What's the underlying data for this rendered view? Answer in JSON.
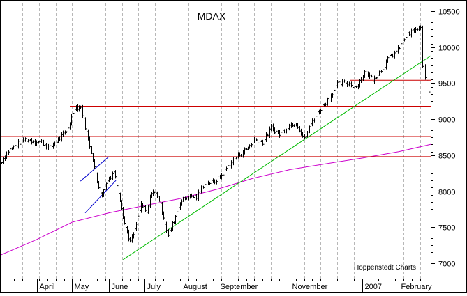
{
  "chart_data": {
    "type": "line",
    "title": "MDAX",
    "source_label": "Hoppenstedt Charts",
    "ylim": [
      6900,
      10550
    ],
    "y_ticks": [
      7000,
      7500,
      8000,
      8500,
      9000,
      9500,
      10000,
      10500
    ],
    "x_range": [
      "2006-03-01",
      "2007-02-28"
    ],
    "month_labels": [
      {
        "label": "April",
        "date": "2006-04-01"
      },
      {
        "label": "May",
        "date": "2006-05-01"
      },
      {
        "label": "June",
        "date": "2006-06-01"
      },
      {
        "label": "July",
        "date": "2006-07-01"
      },
      {
        "label": "August",
        "date": "2006-08-01"
      },
      {
        "label": "September",
        "date": "2006-09-01"
      },
      {
        "label": "November",
        "date": "2006-11-01"
      },
      {
        "label": "2007",
        "date": "2007-01-01"
      },
      {
        "label": "February",
        "date": "2007-02-01"
      }
    ],
    "grid": "vertical dashed",
    "series": [
      {
        "color": "#000000",
        "style": "daily-bars",
        "x": [
          "2006-03-01",
          "2006-03-08",
          "2006-03-15",
          "2006-03-22",
          "2006-03-29",
          "2006-04-05",
          "2006-04-12",
          "2006-04-19",
          "2006-04-26",
          "2006-05-03",
          "2006-05-08",
          "2006-05-12",
          "2006-05-17",
          "2006-05-22",
          "2006-05-26",
          "2006-05-31",
          "2006-06-05",
          "2006-06-09",
          "2006-06-14",
          "2006-06-19",
          "2006-06-23",
          "2006-06-28",
          "2006-07-03",
          "2006-07-07",
          "2006-07-12",
          "2006-07-17",
          "2006-07-21",
          "2006-07-26",
          "2006-07-31",
          "2006-08-07",
          "2006-08-14",
          "2006-08-21",
          "2006-08-28",
          "2006-09-04",
          "2006-09-11",
          "2006-09-18",
          "2006-09-25",
          "2006-10-02",
          "2006-10-09",
          "2006-10-16",
          "2006-10-23",
          "2006-10-30",
          "2006-11-06",
          "2006-11-13",
          "2006-11-20",
          "2006-11-27",
          "2006-12-04",
          "2006-12-11",
          "2006-12-18",
          "2006-12-27",
          "2007-01-03",
          "2007-01-10",
          "2007-01-17",
          "2007-01-24",
          "2007-01-31",
          "2007-02-07",
          "2007-02-14",
          "2007-02-19",
          "2007-02-21",
          "2007-02-23",
          "2007-02-26",
          "2007-02-28"
        ],
        "values": [
          8390,
          8560,
          8650,
          8720,
          8700,
          8680,
          8600,
          8720,
          8820,
          9170,
          9160,
          8900,
          8550,
          8120,
          7950,
          8150,
          8280,
          8000,
          7560,
          7300,
          7450,
          7820,
          7690,
          8000,
          7950,
          7650,
          7380,
          7590,
          7850,
          7930,
          7920,
          8120,
          8120,
          8220,
          8380,
          8500,
          8580,
          8720,
          8680,
          8880,
          8790,
          8900,
          8960,
          8720,
          8980,
          9150,
          9300,
          9480,
          9510,
          9450,
          9650,
          9560,
          9680,
          9860,
          9960,
          10150,
          10240,
          10250,
          9720,
          9610,
          9380,
          9170
        ]
      },
      {
        "color": "#cc00cc",
        "style": "moving-average",
        "x": [
          "2006-03-01",
          "2006-04-01",
          "2006-05-01",
          "2006-06-01",
          "2006-07-01",
          "2006-08-01",
          "2006-09-01",
          "2006-10-01",
          "2006-11-01",
          "2006-12-01",
          "2007-01-01",
          "2007-02-01",
          "2007-02-28"
        ],
        "values": [
          7110,
          7330,
          7570,
          7700,
          7800,
          7900,
          8030,
          8180,
          8300,
          8380,
          8460,
          8550,
          8650
        ]
      }
    ],
    "trendlines": [
      {
        "color": "#00bb00",
        "x": [
          "2006-06-13",
          "2007-02-28"
        ],
        "y": [
          7050,
          9880
        ]
      },
      {
        "color": "#0000cc",
        "x": [
          "2006-05-08",
          "2006-06-01"
        ],
        "y": [
          8140,
          8480
        ]
      },
      {
        "color": "#0000cc",
        "x": [
          "2006-05-12",
          "2006-06-07"
        ],
        "y": [
          7700,
          8150
        ]
      }
    ],
    "horizontal_lines": [
      {
        "color": "#cc0000",
        "y": 9180,
        "from": "2006-04-29"
      },
      {
        "color": "#cc0000",
        "y": 8760,
        "from": "2006-03-01"
      },
      {
        "color": "#cc0000",
        "y": 8480,
        "from": "2006-03-01"
      },
      {
        "color": "#cc0000",
        "y": 9540,
        "from": "2006-12-22"
      }
    ]
  }
}
